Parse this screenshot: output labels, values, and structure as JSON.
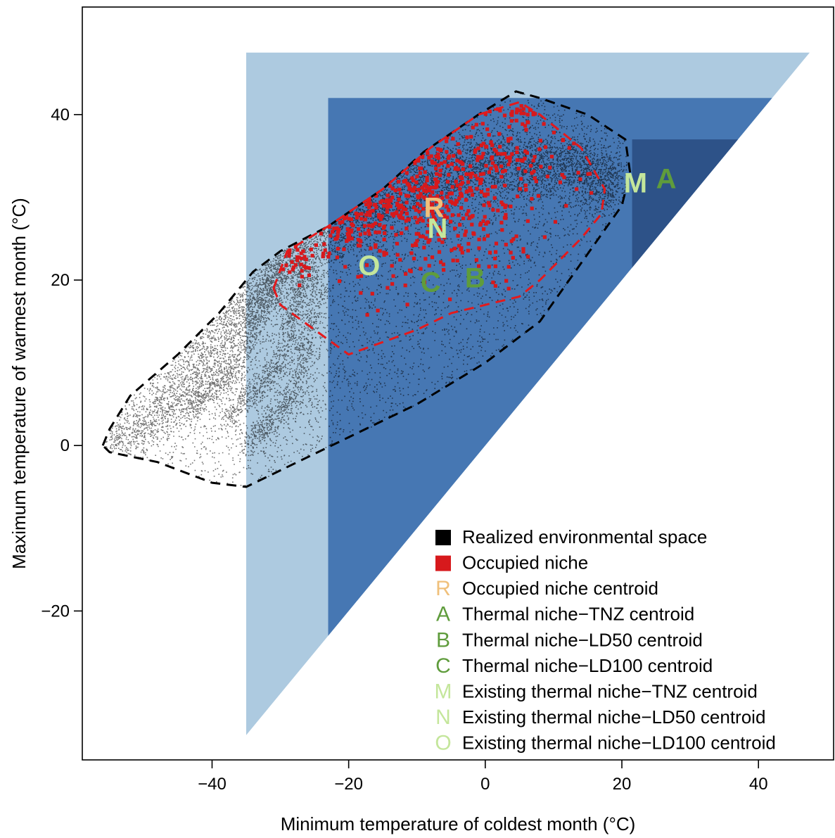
{
  "chart_data": {
    "type": "scatter",
    "xlabel": "Minimum temperature of coldest month (°C)",
    "ylabel": "Maximum temperature of warmest month (°C)",
    "xlim": [
      -59,
      51
    ],
    "ylim": [
      -38,
      53
    ],
    "x_ticks": [
      -40,
      -20,
      0,
      20,
      40
    ],
    "y_ticks": [
      -20,
      0,
      20,
      40
    ],
    "x_tick_labels": [
      "−40",
      "−20",
      "0",
      "20",
      "40"
    ],
    "y_tick_labels": [
      "−20",
      "0",
      "20",
      "40"
    ],
    "grid": false,
    "legend_position": "bottom-right",
    "regions": [
      {
        "id": "thermal-niche-ld100",
        "color": "#adcae0",
        "polygon": [
          [
            -35,
            47.5
          ],
          [
            47.5,
            47.5
          ],
          [
            -35,
            -35
          ]
        ]
      },
      {
        "id": "thermal-niche-ld50",
        "color": "#4677b3",
        "polygon": [
          [
            -23,
            42
          ],
          [
            42,
            42
          ],
          [
            -23,
            -23
          ]
        ]
      },
      {
        "id": "thermal-niche-tnz",
        "color": "#2d5288",
        "polygon": [
          [
            21.5,
            37
          ],
          [
            37,
            37
          ],
          [
            21.5,
            21.5
          ]
        ]
      }
    ],
    "realized_hull": [
      [
        -56,
        0
      ],
      [
        -55,
        2
      ],
      [
        -52,
        6
      ],
      [
        -45,
        11
      ],
      [
        -39,
        16
      ],
      [
        -34,
        21
      ],
      [
        -30,
        23.5
      ],
      [
        -23,
        26.5
      ],
      [
        -15,
        31
      ],
      [
        -9,
        35.5
      ],
      [
        -1,
        40
      ],
      [
        4.5,
        42.8
      ],
      [
        8,
        42
      ],
      [
        15,
        40
      ],
      [
        20.5,
        37
      ],
      [
        21.2,
        33
      ],
      [
        20,
        29
      ],
      [
        8,
        15
      ],
      [
        0,
        10
      ],
      [
        -10,
        5
      ],
      [
        -20,
        1
      ],
      [
        -30,
        -3
      ],
      [
        -35,
        -5
      ],
      [
        -40,
        -4.5
      ],
      [
        -48,
        -2
      ],
      [
        -55,
        -0.8
      ]
    ],
    "occupied_hull": [
      [
        -31,
        19
      ],
      [
        -29,
        23.5
      ],
      [
        -23,
        26.5
      ],
      [
        -15,
        31
      ],
      [
        -8,
        36
      ],
      [
        -1,
        40
      ],
      [
        5,
        41.5
      ],
      [
        8,
        40
      ],
      [
        14,
        36
      ],
      [
        17.5,
        31
      ],
      [
        17,
        28
      ],
      [
        14,
        25
      ],
      [
        8,
        20
      ],
      [
        5,
        18
      ],
      [
        0,
        17
      ],
      [
        -5,
        16
      ],
      [
        -10,
        14
      ],
      [
        -15,
        12.5
      ],
      [
        -20,
        11
      ],
      [
        -25,
        14
      ],
      [
        -30,
        17
      ]
    ],
    "occupied_clusters": [
      {
        "cx": -10,
        "cy": 30,
        "sx": 5.5,
        "sy": 3.5,
        "n": 260
      },
      {
        "cx": -4,
        "cy": 33.5,
        "sx": 5,
        "sy": 2.5,
        "n": 90
      },
      {
        "cx": 5,
        "cy": 33.5,
        "sx": 5,
        "sy": 2.5,
        "n": 70
      },
      {
        "cx": -20,
        "cy": 26.5,
        "sx": 4,
        "sy": 2,
        "n": 70
      },
      {
        "cx": -28,
        "cy": 22.5,
        "sx": 2,
        "sy": 1.2,
        "n": 30
      },
      {
        "cx": 2,
        "cy": 25,
        "sx": 4,
        "sy": 3,
        "n": 50
      },
      {
        "cx": 5,
        "cy": 40.5,
        "sx": 2,
        "sy": 1,
        "n": 25
      },
      {
        "cx": -12,
        "cy": 21,
        "sx": 4,
        "sy": 3,
        "n": 25
      }
    ],
    "centroids": [
      {
        "label": "R",
        "x": -7.5,
        "y": 28.5,
        "color": "#f0c07b"
      },
      {
        "label": "N",
        "x": -7,
        "y": 26,
        "color": "#c4e69b"
      },
      {
        "label": "O",
        "x": -17,
        "y": 21.5,
        "color": "#c4e69b"
      },
      {
        "label": "C",
        "x": -8,
        "y": 19.5,
        "color": "#5f9c3c"
      },
      {
        "label": "B",
        "x": -1.5,
        "y": 20,
        "color": "#5f9c3c"
      },
      {
        "label": "M",
        "x": 22,
        "y": 31.5,
        "color": "#c4e69b"
      },
      {
        "label": "A",
        "x": 26.5,
        "y": 32,
        "color": "#5f9c3c"
      }
    ],
    "legend": [
      {
        "symbol": "■",
        "color": "#000000",
        "text": "Realized environmental space"
      },
      {
        "symbol": "■",
        "color": "#d7191c",
        "text": "Occupied niche"
      },
      {
        "symbol": "R",
        "color": "#f0c07b",
        "text": "Occupied niche centroid"
      },
      {
        "symbol": "A",
        "color": "#5f9c3c",
        "text": "Thermal niche−TNZ centroid"
      },
      {
        "symbol": "B",
        "color": "#5f9c3c",
        "text": "Thermal niche−LD50 centroid"
      },
      {
        "symbol": "C",
        "color": "#5f9c3c",
        "text": "Thermal niche−LD100 centroid"
      },
      {
        "symbol": "M",
        "color": "#c4e69b",
        "text": "Existing thermal niche−TNZ centroid"
      },
      {
        "symbol": "N",
        "color": "#c4e69b",
        "text": "Existing thermal niche−LD50 centroid"
      },
      {
        "symbol": "O",
        "color": "#c4e69b",
        "text": "Existing thermal niche−LD100 centroid"
      }
    ]
  }
}
